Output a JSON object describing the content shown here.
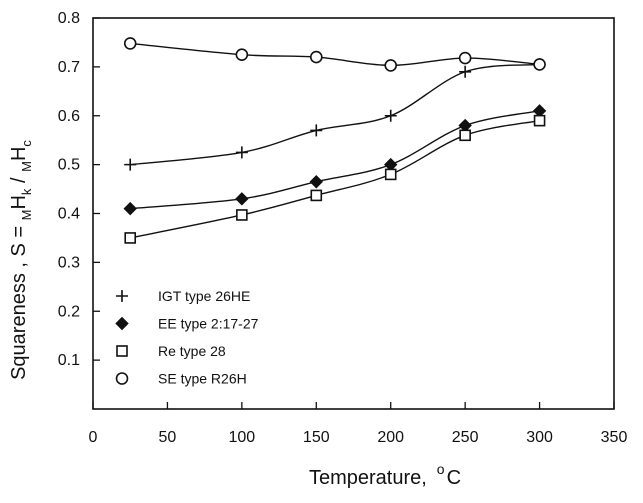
{
  "chart_data": {
    "type": "scatter",
    "title": "",
    "xlabel": {
      "main": "Temperature,",
      "unit_sup": "o",
      "unit": "C"
    },
    "ylabel": {
      "prefix": "Squareness ,  S = ",
      "num_sub": "M",
      "num_main": "H",
      "num_sub2": "k",
      "sep": " / ",
      "den_sub": "M",
      "den_main": "H",
      "den_sub2": "c"
    },
    "xlim": [
      0,
      350
    ],
    "ylim": [
      0,
      0.8
    ],
    "x_ticks": [
      "0",
      "50",
      "100",
      "150",
      "200",
      "250",
      "300",
      "350"
    ],
    "y_ticks": [
      "0.1",
      "0.2",
      "0.3",
      "0.4",
      "0.5",
      "0.6",
      "0.7",
      "0.8"
    ],
    "grid": false,
    "legend_position": "bottom-left",
    "series": [
      {
        "name": "IGT type 26HE",
        "marker": "plus",
        "x": [
          25,
          100,
          150,
          200,
          250,
          300
        ],
        "y": [
          0.5,
          0.525,
          0.57,
          0.6,
          0.69,
          0.705
        ]
      },
      {
        "name": "EE type 2:17-27",
        "marker": "diamond-filled",
        "x": [
          25,
          100,
          150,
          200,
          250,
          300
        ],
        "y": [
          0.41,
          0.43,
          0.465,
          0.5,
          0.58,
          0.61
        ]
      },
      {
        "name": "Re type 28",
        "marker": "square-open",
        "x": [
          25,
          100,
          150,
          200,
          250,
          300
        ],
        "y": [
          0.35,
          0.397,
          0.437,
          0.48,
          0.56,
          0.59
        ]
      },
      {
        "name": "SE type R26H",
        "marker": "circle-open",
        "x": [
          25,
          100,
          150,
          200,
          250,
          300
        ],
        "y": [
          0.748,
          0.725,
          0.72,
          0.703,
          0.718,
          0.705
        ]
      }
    ]
  },
  "colors": {
    "ink": "#111111",
    "background": "#ffffff"
  }
}
